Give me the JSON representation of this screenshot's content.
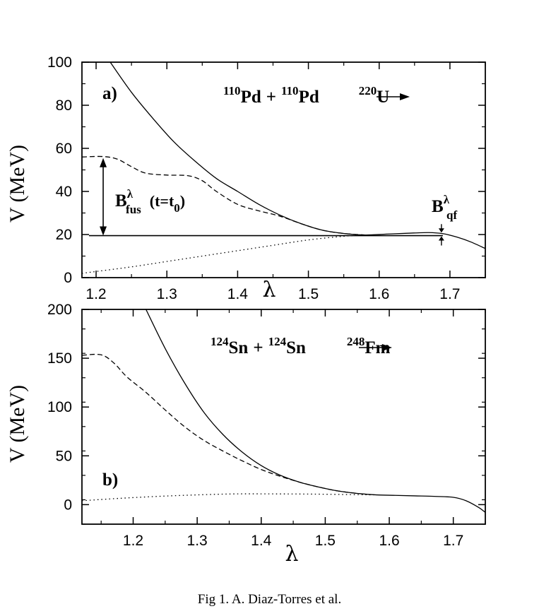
{
  "caption": "Fig 1. A. Diaz-Torres et al.",
  "chart_data": [
    {
      "type": "line",
      "panel_label": "a)",
      "reaction": {
        "a1": "110",
        "a1s": "Pd",
        "plus": "+",
        "a2": "110",
        "a2s": "Pd",
        "p": "220",
        "ps": "U"
      },
      "xlabel": "λ",
      "ylabel": "V (MeV)",
      "xlim": [
        1.18,
        1.75
      ],
      "ylim": [
        0,
        100
      ],
      "xticks": [
        "1.2",
        "1.3",
        "1.4",
        "1.5",
        "1.6",
        "1.7"
      ],
      "yticks": [
        "0",
        "20",
        "40",
        "60",
        "80",
        "100"
      ],
      "annotations": {
        "b_fus": {
          "base": "B",
          "sup": "λ",
          "sub": "fus",
          "paren": "(t=t",
          "paren_sub": "0",
          "paren_close": ")"
        },
        "b_qf": {
          "base": "B",
          "sup": "λ",
          "sub": "qf"
        }
      },
      "reference_level": 19.5,
      "series": [
        {
          "style": "solid",
          "x": [
            1.22,
            1.25,
            1.28,
            1.31,
            1.34,
            1.37,
            1.4,
            1.43,
            1.46,
            1.49,
            1.52,
            1.55,
            1.58,
            1.61,
            1.64,
            1.67,
            1.69,
            1.71,
            1.73,
            1.75
          ],
          "y": [
            100,
            86,
            74,
            63,
            54,
            46,
            40,
            34,
            29,
            25,
            22,
            20.5,
            19.8,
            20.2,
            20.6,
            20.9,
            20.4,
            18.8,
            16.5,
            13.5
          ]
        },
        {
          "style": "dashed",
          "x": [
            1.18,
            1.21,
            1.23,
            1.25,
            1.27,
            1.3,
            1.33,
            1.35,
            1.37,
            1.4,
            1.43,
            1.46,
            1.49,
            1.52,
            1.55,
            1.58
          ],
          "y": [
            56,
            56.2,
            55,
            51.5,
            48.5,
            47.6,
            47.3,
            45,
            40,
            34,
            31,
            28.5,
            25,
            22,
            20.5,
            19.8
          ]
        },
        {
          "style": "dotted",
          "x": [
            1.18,
            1.25,
            1.3,
            1.35,
            1.4,
            1.45,
            1.5,
            1.55,
            1.58
          ],
          "y": [
            2,
            5,
            7.5,
            10,
            12.5,
            15,
            17.5,
            19.2,
            19.8
          ]
        }
      ]
    },
    {
      "type": "line",
      "panel_label": "b)",
      "reaction": {
        "a1": "124",
        "a1s": "Sn",
        "plus": "+",
        "a2": "124",
        "a2s": "Sn",
        "p": "248",
        "ps": "Fm"
      },
      "xlabel": "λ",
      "ylabel": "V (MeV)",
      "xlim": [
        1.12,
        1.75
      ],
      "ylim": [
        -20,
        200
      ],
      "xticks": [
        "1.2",
        "1.3",
        "1.4",
        "1.5",
        "1.6",
        "1.7"
      ],
      "yticks": [
        "0",
        "50",
        "100",
        "150",
        "200"
      ],
      "series": [
        {
          "style": "solid",
          "x": [
            1.22,
            1.25,
            1.28,
            1.31,
            1.34,
            1.37,
            1.4,
            1.43,
            1.46,
            1.49,
            1.52,
            1.55,
            1.58,
            1.61,
            1.64,
            1.67,
            1.7,
            1.72,
            1.74,
            1.75
          ],
          "y": [
            200,
            160,
            125,
            95,
            72,
            54,
            40,
            30,
            23,
            18,
            14,
            11.5,
            10,
            9.5,
            9,
            8.5,
            7.5,
            4,
            -3,
            -8
          ]
        },
        {
          "style": "dashed",
          "x": [
            1.12,
            1.15,
            1.17,
            1.19,
            1.22,
            1.25,
            1.28,
            1.31,
            1.34,
            1.37,
            1.4,
            1.43,
            1.46,
            1.49,
            1.52,
            1.55
          ],
          "y": [
            153,
            153.5,
            145,
            131,
            115,
            97,
            80,
            66,
            55,
            45,
            36,
            29,
            23,
            18,
            14,
            11.5
          ]
        },
        {
          "style": "dotted",
          "x": [
            1.12,
            1.18,
            1.24,
            1.3,
            1.36,
            1.42,
            1.48,
            1.54,
            1.58
          ],
          "y": [
            4,
            6.5,
            8.5,
            10,
            11,
            11,
            10.8,
            10.3,
            10
          ]
        }
      ]
    }
  ]
}
